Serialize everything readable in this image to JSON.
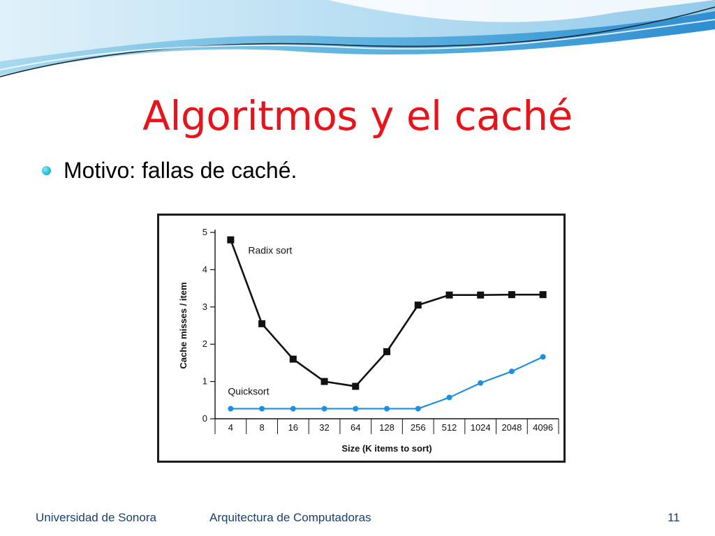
{
  "slide": {
    "title": "Algoritmos y el caché",
    "bullet": "Motivo: fallas de caché.",
    "footer_left": "Universidad de Sonora",
    "footer_center": "Arquitectura de Computadoras",
    "page_number": "11"
  },
  "colors": {
    "title": "#e8141b",
    "footer_text": "#1a3f6b",
    "radix_series": "#111111",
    "quicksort_series": "#1e8fe0",
    "bullet_accent": "#18b3cc"
  },
  "chart_data": {
    "type": "line",
    "xlabel": "Size (K items to sort)",
    "ylabel": "Cache misses / item",
    "categories": [
      "4",
      "8",
      "16",
      "32",
      "64",
      "128",
      "256",
      "512",
      "1024",
      "2048",
      "4096"
    ],
    "ylim": [
      0,
      5
    ],
    "yticks": [
      "0",
      "1",
      "2",
      "3",
      "4",
      "5"
    ],
    "grid": false,
    "series": [
      {
        "name": "Radix sort",
        "marker": "square",
        "values": [
          4.8,
          2.55,
          1.6,
          1.0,
          0.87,
          1.8,
          3.05,
          3.32,
          3.32,
          3.33,
          3.33
        ]
      },
      {
        "name": "Quicksort",
        "marker": "circle",
        "values": [
          0.27,
          0.27,
          0.27,
          0.27,
          0.27,
          0.27,
          0.27,
          0.57,
          0.96,
          1.27,
          1.66
        ]
      }
    ]
  }
}
